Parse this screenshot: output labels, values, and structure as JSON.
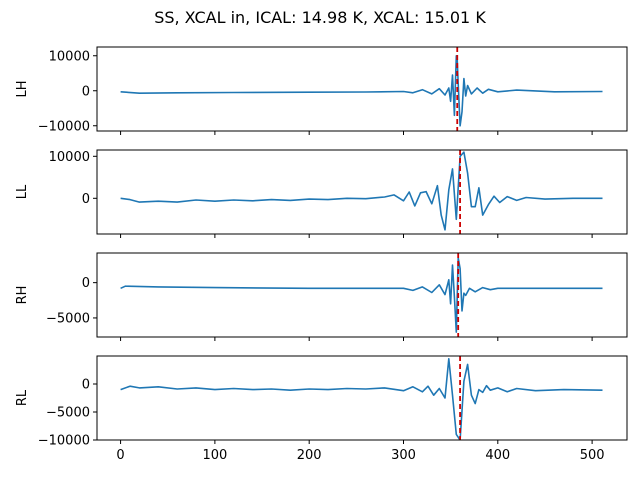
{
  "title": "SS, XCAL in, ICAL: 14.98 K, XCAL: 15.01 K",
  "chart_data": {
    "type": "line",
    "title": "SS, XCAL in, ICAL: 14.98 K, XCAL: 15.01 K",
    "shared_x": true,
    "xlim": [
      -25,
      537
    ],
    "xticks": [
      0,
      100,
      200,
      300,
      400,
      500
    ],
    "line_color": "#1f77b4",
    "marker_color": "#cc0000",
    "marker_style": "dashed",
    "subplots": [
      {
        "ylabel": "LH",
        "ylim": [
          -11500,
          12500
        ],
        "yticks": [
          -10000,
          0,
          10000
        ],
        "marker_x": 357,
        "series": [
          {
            "x": [
              0,
              20,
              60,
              120,
              200,
              260,
              300,
              310,
              320,
              330,
              338,
              344,
              348,
              350,
              352,
              354,
              356,
              357,
              358,
              360,
              362,
              364,
              366,
              368,
              372,
              378,
              384,
              390,
              400,
              420,
              460,
              511
            ],
            "y": [
              -300,
              -700,
              -600,
              -500,
              -400,
              -350,
              -200,
              -600,
              300,
              -900,
              600,
              -1200,
              800,
              -3000,
              4500,
              -7000,
              10000,
              9000,
              2000,
              -10000,
              -6000,
              3500,
              -1500,
              1500,
              -900,
              800,
              -700,
              400,
              -300,
              200,
              -300,
              -200
            ]
          }
        ]
      },
      {
        "ylabel": "LL",
        "ylim": [
          -8500,
          11500
        ],
        "yticks": [
          0,
          10000
        ],
        "marker_x": 360,
        "series": [
          {
            "x": [
              0,
              10,
              20,
              40,
              60,
              80,
              100,
              120,
              140,
              160,
              180,
              200,
              220,
              240,
              260,
              280,
              290,
              300,
              306,
              312,
              318,
              324,
              330,
              336,
              340,
              344,
              348,
              352,
              356,
              360,
              364,
              368,
              372,
              376,
              380,
              384,
              390,
              396,
              402,
              410,
              420,
              430,
              450,
              480,
              511
            ],
            "y": [
              0,
              -300,
              -900,
              -700,
              -900,
              -400,
              -700,
              -400,
              -600,
              -300,
              -500,
              -200,
              -300,
              0,
              -100,
              300,
              800,
              -600,
              1500,
              -1800,
              1300,
              1600,
              -1300,
              3000,
              -4000,
              -7500,
              2000,
              7000,
              -5000,
              10000,
              11000,
              6000,
              -2000,
              -2000,
              2500,
              -4000,
              -1500,
              500,
              -1000,
              400,
              -500,
              200,
              -200,
              0,
              0
            ]
          }
        ]
      },
      {
        "ylabel": "RH",
        "ylim": [
          -7700,
          4200
        ],
        "yticks": [
          -5000,
          0
        ],
        "marker_x": 358,
        "series": [
          {
            "x": [
              0,
              5,
              40,
              100,
              200,
              280,
              300,
              310,
              320,
              330,
              338,
              344,
              348,
              350,
              352,
              354,
              356,
              358,
              360,
              362,
              364,
              366,
              370,
              376,
              384,
              392,
              400,
              420,
              460,
              511
            ],
            "y": [
              -800,
              -500,
              -600,
              -700,
              -800,
              -800,
              -800,
              -1100,
              -600,
              -1400,
              -300,
              -1700,
              400,
              -3000,
              2500,
              -2000,
              -7000,
              3500,
              2000,
              -4000,
              -1500,
              -1800,
              -800,
              -1300,
              -700,
              -1000,
              -800,
              -800,
              -800,
              -800
            ]
          }
        ]
      },
      {
        "ylabel": "RL",
        "ylim": [
          -10000,
          5000
        ],
        "yticks": [
          -10000,
          -5000,
          0
        ],
        "marker_x": 360,
        "series": [
          {
            "x": [
              0,
              10,
              20,
              40,
              60,
              80,
              100,
              120,
              140,
              160,
              180,
              200,
              220,
              240,
              260,
              280,
              300,
              310,
              320,
              326,
              332,
              338,
              344,
              348,
              352,
              356,
              360,
              364,
              368,
              372,
              376,
              380,
              384,
              388,
              392,
              400,
              410,
              420,
              440,
              470,
              511
            ],
            "y": [
              -1000,
              -400,
              -700,
              -500,
              -900,
              -700,
              -1000,
              -800,
              -1000,
              -900,
              -1100,
              -900,
              -1000,
              -800,
              -900,
              -700,
              -1200,
              -500,
              -1400,
              -400,
              -2000,
              -800,
              -2500,
              4500,
              -2000,
              -9000,
              -10000,
              500,
              3500,
              -2000,
              -3500,
              -1000,
              -1500,
              -300,
              -1100,
              -700,
              -1400,
              -800,
              -1200,
              -1000,
              -1100
            ]
          }
        ]
      }
    ]
  }
}
